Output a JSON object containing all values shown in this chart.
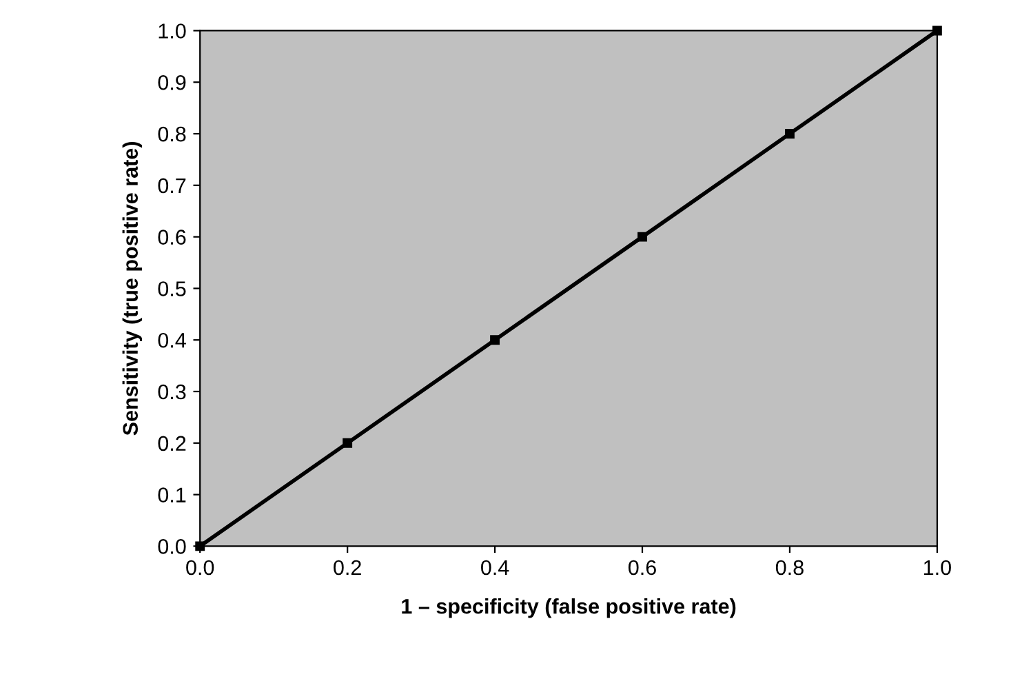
{
  "chart_data": {
    "type": "line",
    "xlabel": "1 – specificity (false positive rate)",
    "ylabel": "Sensitivity (true positive rate)",
    "x": [
      0.0,
      0.2,
      0.4,
      0.6,
      0.8,
      1.0
    ],
    "series": [
      {
        "color": "#000000",
        "values": [
          0.0,
          0.2,
          0.4,
          0.6,
          0.8,
          1.0
        ]
      }
    ],
    "xlim": [
      0.0,
      1.0
    ],
    "ylim": [
      0.0,
      1.0
    ],
    "xticks": [
      {
        "value": 0,
        "label": "0.0"
      },
      0.2,
      0.4,
      0.6,
      0.8,
      {
        "value": 1,
        "label": "1.0"
      }
    ],
    "yticks": [
      {
        "value": 0,
        "label": "0.0"
      },
      0.1,
      0.2,
      0.3,
      0.4,
      0.5,
      0.6,
      0.7,
      0.8,
      0.9,
      {
        "value": 1,
        "label": "1.0"
      }
    ],
    "marker": "square",
    "line_style": "solid",
    "grid": false,
    "legend": false
  }
}
